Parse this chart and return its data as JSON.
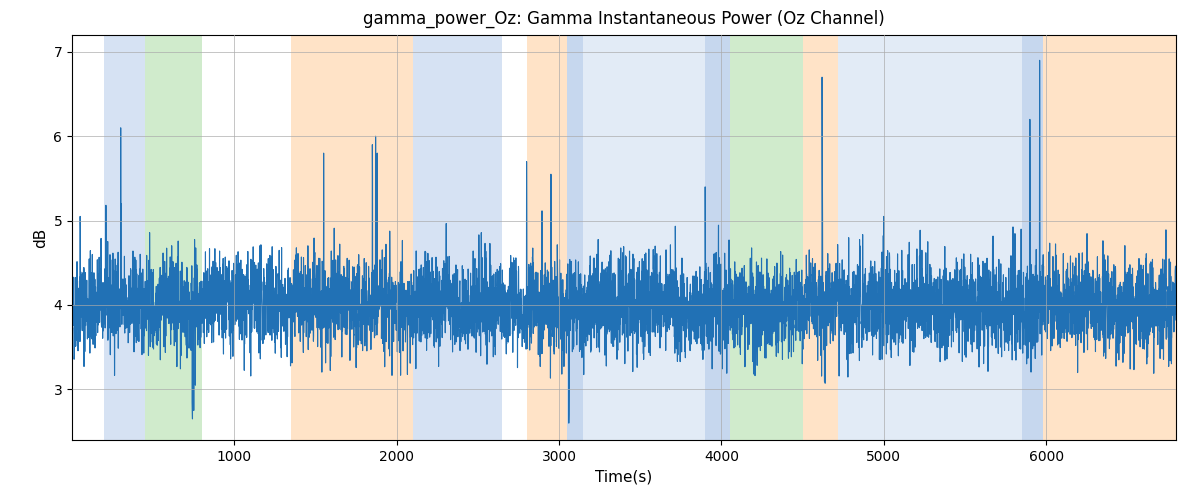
{
  "title": "gamma_power_Oz: Gamma Instantaneous Power (Oz Channel)",
  "xlabel": "Time(s)",
  "ylabel": "dB",
  "xlim": [
    0,
    6800
  ],
  "ylim": [
    2.4,
    7.2
  ],
  "yticks": [
    3,
    4,
    5,
    6,
    7
  ],
  "xticks": [
    1000,
    2000,
    3000,
    4000,
    5000,
    6000
  ],
  "line_color": "#2171b5",
  "line_width": 0.8,
  "background_color": "#ffffff",
  "grid_color": "#aaaaaa",
  "bands": [
    {
      "xmin": 200,
      "xmax": 450,
      "color": "#aec6e8",
      "alpha": 0.5
    },
    {
      "xmin": 450,
      "xmax": 800,
      "color": "#98d48e",
      "alpha": 0.45
    },
    {
      "xmin": 1350,
      "xmax": 2100,
      "color": "#ffc990",
      "alpha": 0.5
    },
    {
      "xmin": 2100,
      "xmax": 2650,
      "color": "#aec6e8",
      "alpha": 0.5
    },
    {
      "xmin": 2800,
      "xmax": 3050,
      "color": "#ffc990",
      "alpha": 0.5
    },
    {
      "xmin": 3050,
      "xmax": 3150,
      "color": "#aec6e8",
      "alpha": 0.7
    },
    {
      "xmin": 3150,
      "xmax": 3900,
      "color": "#aec6e8",
      "alpha": 0.35
    },
    {
      "xmin": 3900,
      "xmax": 4050,
      "color": "#aec6e8",
      "alpha": 0.7
    },
    {
      "xmin": 4050,
      "xmax": 4500,
      "color": "#98d48e",
      "alpha": 0.45
    },
    {
      "xmin": 4500,
      "xmax": 4720,
      "color": "#ffc990",
      "alpha": 0.5
    },
    {
      "xmin": 4720,
      "xmax": 5850,
      "color": "#aec6e8",
      "alpha": 0.35
    },
    {
      "xmin": 5850,
      "xmax": 5980,
      "color": "#aec6e8",
      "alpha": 0.7
    },
    {
      "xmin": 5980,
      "xmax": 6800,
      "color": "#ffc990",
      "alpha": 0.5
    }
  ],
  "seed": 42,
  "n_points": 6800
}
